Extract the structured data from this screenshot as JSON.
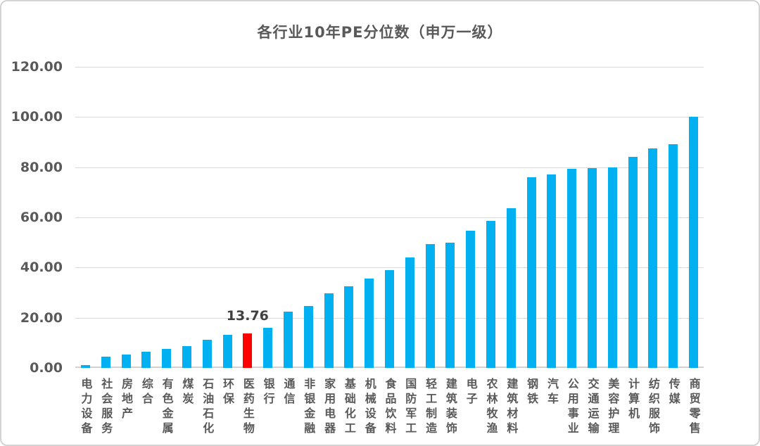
{
  "frame": {
    "background": "#ffffff",
    "border_color": "#d3d3d3"
  },
  "chart_data": {
    "type": "bar",
    "title": "各行业10年PE分位数（申万一级）",
    "xlabel": "",
    "ylabel": "",
    "ylim": [
      0,
      120
    ],
    "ytick_step": 20,
    "ytick_labels": [
      "0.00",
      "20.00",
      "40.00",
      "60.00",
      "80.00",
      "100.00",
      "120.00"
    ],
    "grid": "horizontal",
    "legend": false,
    "categories": [
      "电力设备",
      "社会服务",
      "房地产",
      "综合",
      "有色金属",
      "煤炭",
      "石油石化",
      "环保",
      "医药生物",
      "银行",
      "通信",
      "非银金融",
      "家用电器",
      "基础化工",
      "机械设备",
      "食品饮料",
      "国防军工",
      "轻工制造",
      "建筑装饰",
      "电子",
      "农林牧渔",
      "建筑材料",
      "钢铁",
      "汽车",
      "公用事业",
      "交通运输",
      "美容护理",
      "计算机",
      "纺织服饰",
      "传媒",
      "商贸零售"
    ],
    "values": [
      1.2,
      4.5,
      5.3,
      6.5,
      7.7,
      8.6,
      11.3,
      13.3,
      13.76,
      16.1,
      22.5,
      24.7,
      29.7,
      32.5,
      35.5,
      39.0,
      44.0,
      49.3,
      50.0,
      54.8,
      58.6,
      63.7,
      76.1,
      77.2,
      79.3,
      79.5,
      79.9,
      84.1,
      87.6,
      89.2,
      100.0
    ],
    "highlight_index": 8,
    "highlight_category": "医药生物",
    "annotation": {
      "category_index": 8,
      "text": "13.76"
    },
    "colors": {
      "bar": "#00B0F0",
      "highlight": "#FF0000",
      "title": "#595959",
      "axis_labels": "#595959",
      "gridline": "#D9D9D9"
    }
  }
}
